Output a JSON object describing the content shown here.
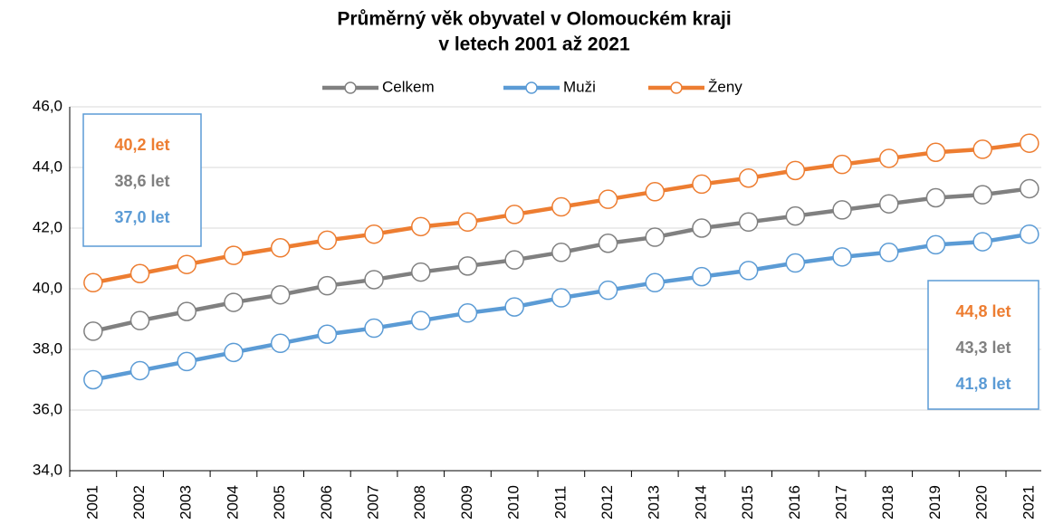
{
  "chart_data": {
    "type": "line",
    "title": [
      "Průměrný věk obyvatel v Olomouckém kraji",
      "v letech 2001 až 2021"
    ],
    "categories": [
      "2001",
      "2002",
      "2003",
      "2004",
      "2005",
      "2006",
      "2007",
      "2008",
      "2009",
      "2010",
      "2011",
      "2012",
      "2013",
      "2014",
      "2015",
      "2016",
      "2017",
      "2018",
      "2019",
      "2020",
      "2021"
    ],
    "series": [
      {
        "name": "Celkem",
        "color": "#808080",
        "values": [
          38.6,
          38.95,
          39.25,
          39.55,
          39.8,
          40.1,
          40.3,
          40.55,
          40.75,
          40.95,
          41.2,
          41.5,
          41.7,
          42.0,
          42.2,
          42.4,
          42.6,
          42.8,
          43.0,
          43.1,
          43.3
        ]
      },
      {
        "name": "Muži",
        "color": "#5b9bd5",
        "values": [
          37.0,
          37.3,
          37.6,
          37.9,
          38.2,
          38.5,
          38.7,
          38.95,
          39.2,
          39.4,
          39.7,
          39.95,
          40.2,
          40.4,
          40.6,
          40.85,
          41.05,
          41.2,
          41.45,
          41.55,
          41.8
        ]
      },
      {
        "name": "Ženy",
        "color": "#ed7d31",
        "values": [
          40.2,
          40.5,
          40.8,
          41.1,
          41.35,
          41.6,
          41.8,
          42.05,
          42.2,
          42.45,
          42.7,
          42.95,
          43.2,
          43.45,
          43.65,
          43.9,
          44.1,
          44.3,
          44.5,
          44.6,
          44.8
        ]
      }
    ],
    "ylim": [
      34,
      46
    ],
    "yticks": [
      {
        "value": 34,
        "label": "34,0"
      },
      {
        "value": 36,
        "label": "36,0"
      },
      {
        "value": 38,
        "label": "38,0"
      },
      {
        "value": 40,
        "label": "40,0"
      },
      {
        "value": 42,
        "label": "42,0"
      },
      {
        "value": 44,
        "label": "44,0"
      },
      {
        "value": 46,
        "label": "46,0"
      }
    ],
    "grid": true,
    "legend": "top",
    "annotations": [
      {
        "box": "left",
        "items": [
          {
            "text": "40,2 let",
            "color": "#ed7d31"
          },
          {
            "text": "38,6 let",
            "color": "#808080"
          },
          {
            "text": "37,0 let",
            "color": "#5b9bd5"
          }
        ]
      },
      {
        "box": "right",
        "items": [
          {
            "text": "44,8 let",
            "color": "#ed7d31"
          },
          {
            "text": "43,3 let",
            "color": "#808080"
          },
          {
            "text": "41,8 let",
            "color": "#5b9bd5"
          }
        ]
      }
    ]
  }
}
